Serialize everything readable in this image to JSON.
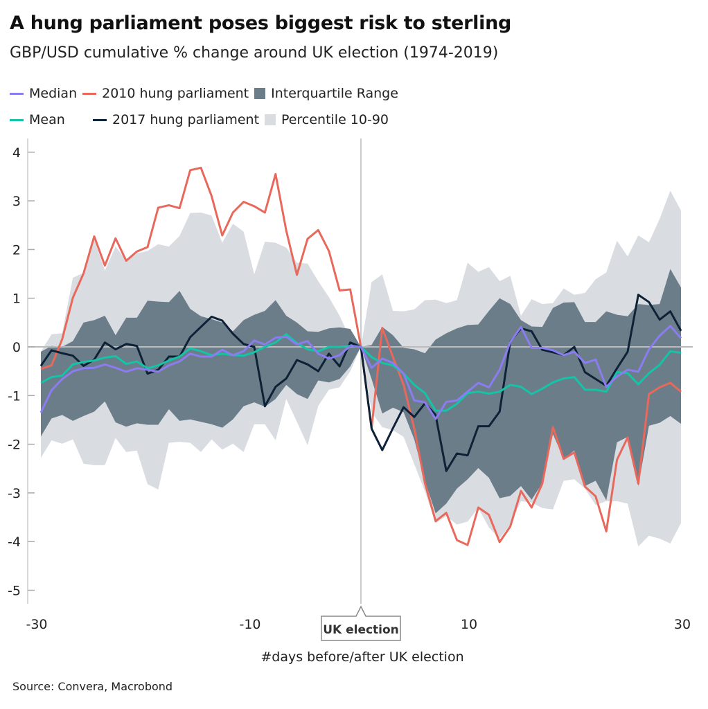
{
  "title": "A hung parliament poses biggest risk to sterling",
  "subtitle": "GBP/USD cumulative % change around UK election (1974-2019)",
  "source": "Source: Convera, Macrobond",
  "chart_data": {
    "type": "line",
    "title": "A hung parliament poses biggest risk to sterling",
    "subtitle": "GBP/USD cumulative % change around UK election (1974-2019)",
    "xlabel": "#days before/after UK election",
    "ylabel": "",
    "xlim": [
      -30,
      30
    ],
    "ylim": [
      -5.2,
      4.3
    ],
    "xticks": [
      -30,
      -10,
      10,
      30
    ],
    "yticks": [
      4,
      3,
      2,
      1,
      0,
      -1,
      -2,
      -3,
      -4,
      -5
    ],
    "grid": false,
    "legend_placement": "top",
    "annotation": {
      "x": 0,
      "label": "UK election"
    },
    "x_start": -30,
    "colors": {
      "median": "#8b7cf0",
      "mean": "#14c4a6",
      "hung2010": "#e8695c",
      "hung2017": "#0d2137",
      "iqr": "#6c7d8a",
      "p1090": "#d9dce1"
    },
    "bands": [
      {
        "name": "Percentile 10-90",
        "key": "p1090",
        "upper": [
          -0.1,
          0.26,
          0.28,
          1.42,
          1.52,
          2.2,
          1.57,
          2.06,
          1.78,
          1.92,
          1.97,
          2.11,
          2.06,
          2.28,
          2.75,
          2.76,
          2.7,
          2.14,
          2.53,
          2.37,
          1.49,
          2.16,
          2.14,
          2.04,
          1.73,
          1.71,
          1.35,
          1.02,
          0.64,
          0.17,
          0,
          1.33,
          1.49,
          0.74,
          0.73,
          0.77,
          0.96,
          0.97,
          0.9,
          0.96,
          1.73,
          1.54,
          1.64,
          1.35,
          1.46,
          0.64,
          0.98,
          0.88,
          0.9,
          1.2,
          1.07,
          1.11,
          1.39,
          1.53,
          2.18,
          1.86,
          2.29,
          2.15,
          2.63,
          3.21,
          2.8
        ],
        "lower": [
          -2.28,
          -1.92,
          -1.99,
          -1.9,
          -2.4,
          -2.43,
          -2.43,
          -1.87,
          -2.16,
          -2.13,
          -2.82,
          -2.93,
          -1.97,
          -1.95,
          -1.97,
          -2.16,
          -1.9,
          -2.11,
          -1.99,
          -2.16,
          -1.59,
          -1.59,
          -1.92,
          -1.07,
          -1.54,
          -2.02,
          -1.21,
          -0.88,
          -0.83,
          -0.5,
          0,
          -1.34,
          -1.65,
          -1.71,
          -1.85,
          -2.41,
          -2.97,
          -3.62,
          -3.48,
          -3.65,
          -3.59,
          -3.31,
          -3.71,
          -3.94,
          -3.65,
          -3.17,
          -3.2,
          -3.31,
          -3.34,
          -2.75,
          -2.72,
          -2.91,
          -3.25,
          -3.17,
          -3.17,
          -3.22,
          -4.1,
          -3.88,
          -3.94,
          -4.04,
          -3.62
        ]
      },
      {
        "name": "Interquartile Range",
        "key": "iqr",
        "upper": [
          -0.1,
          0.02,
          0,
          0.12,
          0.5,
          0.55,
          0.64,
          0.24,
          0.6,
          0.6,
          0.95,
          0.93,
          0.92,
          1.15,
          0.78,
          0.63,
          0.57,
          0.5,
          0.32,
          0.55,
          0.66,
          0.74,
          0.96,
          0.64,
          0.5,
          0.32,
          0.31,
          0.38,
          0.4,
          0.37,
          0,
          0.04,
          0.41,
          0.24,
          -0.02,
          -0.05,
          -0.13,
          0.15,
          0.28,
          0.38,
          0.45,
          0.46,
          0.74,
          1.0,
          0.88,
          0.55,
          0.42,
          0.41,
          0.8,
          0.91,
          0.92,
          0.51,
          0.51,
          0.73,
          0.66,
          0.63,
          0.88,
          0.86,
          0.88,
          1.6,
          1.22
        ],
        "lower": [
          -1.84,
          -1.47,
          -1.4,
          -1.52,
          -1.42,
          -1.33,
          -1.12,
          -1.55,
          -1.64,
          -1.57,
          -1.6,
          -1.6,
          -1.28,
          -1.52,
          -1.49,
          -1.54,
          -1.59,
          -1.66,
          -1.49,
          -1.22,
          -1.14,
          -1.23,
          -1.07,
          -0.78,
          -0.97,
          -1.07,
          -0.69,
          -0.73,
          -0.66,
          -0.4,
          0,
          -0.66,
          -1.37,
          -1.25,
          -1.34,
          -1.9,
          -2.75,
          -3.42,
          -3.22,
          -2.91,
          -2.72,
          -2.49,
          -2.69,
          -3.11,
          -3.06,
          -2.86,
          -3.14,
          -2.8,
          -1.79,
          -2.3,
          -2.13,
          -2.86,
          -2.75,
          -3.15,
          -1.96,
          -1.85,
          -2.86,
          -1.62,
          -1.56,
          -1.42,
          -1.58
        ]
      }
    ],
    "series": [
      {
        "name": "Median",
        "key": "median",
        "values": [
          -1.35,
          -0.89,
          -0.66,
          -0.5,
          -0.44,
          -0.43,
          -0.36,
          -0.43,
          -0.51,
          -0.44,
          -0.47,
          -0.51,
          -0.38,
          -0.3,
          -0.14,
          -0.2,
          -0.2,
          -0.06,
          -0.17,
          -0.09,
          0.13,
          0.05,
          0.19,
          0.21,
          0.05,
          0.12,
          -0.14,
          -0.24,
          -0.17,
          0.02,
          0,
          -0.43,
          -0.24,
          -0.33,
          -0.55,
          -1.1,
          -1.14,
          -1.48,
          -1.13,
          -1.1,
          -0.92,
          -0.74,
          -0.83,
          -0.47,
          0.1,
          0.41,
          -0.02,
          -0.02,
          -0.07,
          -0.17,
          -0.1,
          -0.33,
          -0.26,
          -0.82,
          -0.61,
          -0.47,
          -0.51,
          -0.05,
          0.23,
          0.43,
          0.18
        ]
      },
      {
        "name": "Mean",
        "key": "mean",
        "values": [
          -0.74,
          -0.62,
          -0.59,
          -0.36,
          -0.31,
          -0.28,
          -0.22,
          -0.19,
          -0.35,
          -0.3,
          -0.44,
          -0.38,
          -0.28,
          -0.2,
          -0.03,
          -0.09,
          -0.17,
          -0.14,
          -0.17,
          -0.18,
          -0.11,
          0,
          0.09,
          0.26,
          0.08,
          -0.05,
          -0.09,
          0,
          0,
          0.02,
          0,
          -0.21,
          -0.33,
          -0.38,
          -0.55,
          -0.78,
          -0.95,
          -1.31,
          -1.31,
          -1.17,
          -0.95,
          -0.92,
          -0.96,
          -0.92,
          -0.78,
          -0.82,
          -0.97,
          -0.86,
          -0.73,
          -0.65,
          -0.62,
          -0.88,
          -0.88,
          -0.92,
          -0.52,
          -0.54,
          -0.77,
          -0.54,
          -0.37,
          -0.09,
          -0.12
        ]
      },
      {
        "name": "2010 hung parliament",
        "key": "hung2010",
        "values": [
          -0.45,
          -0.38,
          0.16,
          1.01,
          1.51,
          2.27,
          1.67,
          2.23,
          1.77,
          1.96,
          2.05,
          2.86,
          2.91,
          2.85,
          3.63,
          3.68,
          3.1,
          2.29,
          2.76,
          2.98,
          2.89,
          2.76,
          3.55,
          2.39,
          1.48,
          2.22,
          2.4,
          1.97,
          1.16,
          1.18,
          0,
          -1.67,
          0.39,
          -0.21,
          -0.78,
          -1.68,
          -2.8,
          -3.58,
          -3.41,
          -3.97,
          -4.07,
          -3.3,
          -3.45,
          -4.01,
          -3.69,
          -2.96,
          -3.3,
          -2.81,
          -1.65,
          -2.3,
          -2.17,
          -2.87,
          -3.07,
          -3.79,
          -2.32,
          -1.86,
          -2.81,
          -0.97,
          -0.83,
          -0.74,
          -0.92
        ]
      },
      {
        "name": "2017 hung parliament",
        "key": "hung2017",
        "values": [
          -0.39,
          -0.07,
          -0.13,
          -0.18,
          -0.39,
          -0.26,
          0.09,
          -0.05,
          0.06,
          0.02,
          -0.55,
          -0.47,
          -0.2,
          -0.2,
          0.2,
          0.41,
          0.62,
          0.54,
          0.27,
          0.06,
          0,
          -1.22,
          -0.82,
          -0.65,
          -0.27,
          -0.36,
          -0.5,
          -0.14,
          -0.4,
          0.09,
          0,
          -1.68,
          -2.12,
          -1.67,
          -1.24,
          -1.44,
          -1.16,
          -1.4,
          -2.55,
          -2.19,
          -2.23,
          -1.63,
          -1.63,
          -1.33,
          0.11,
          0.38,
          0.32,
          -0.06,
          -0.11,
          -0.17,
          0,
          -0.52,
          -0.66,
          -0.8,
          -0.44,
          -0.1,
          1.07,
          0.92,
          0.56,
          0.73,
          0.33
        ]
      }
    ]
  }
}
